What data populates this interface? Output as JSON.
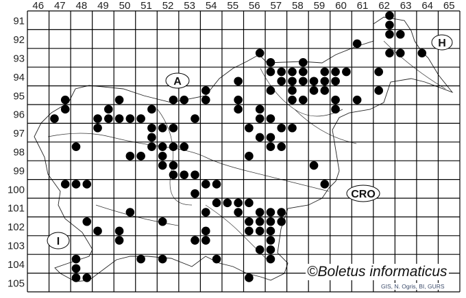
{
  "map": {
    "columns": [
      "46",
      "47",
      "48",
      "49",
      "50",
      "51",
      "52",
      "53",
      "54",
      "55",
      "56",
      "57",
      "58",
      "59",
      "60",
      "61",
      "62",
      "63",
      "64",
      "65"
    ],
    "rows": [
      "91",
      "92",
      "93",
      "94",
      "95",
      "96",
      "97",
      "98",
      "99",
      "100",
      "101",
      "102",
      "103",
      "104",
      "105"
    ],
    "country_labels": [
      {
        "text": "A"
      },
      {
        "text": "H"
      },
      {
        "text": "CRO"
      },
      {
        "text": "I"
      }
    ],
    "record_color": "#000000",
    "records": [
      [
        47.25,
        95.25
      ],
      [
        47.25,
        95.75
      ],
      [
        46.75,
        96.25
      ],
      [
        49.75,
        95.25
      ],
      [
        49.25,
        95.75
      ],
      [
        48.75,
        96.25
      ],
      [
        49.25,
        96.25
      ],
      [
        49.75,
        96.25
      ],
      [
        50.25,
        96.25
      ],
      [
        50.75,
        96.25
      ],
      [
        48.75,
        96.75
      ],
      [
        51.25,
        95.75
      ],
      [
        52.25,
        95.25
      ],
      [
        52.75,
        95.25
      ],
      [
        53.75,
        94.75
      ],
      [
        53.75,
        95.25
      ],
      [
        53.25,
        96.25
      ],
      [
        51.25,
        96.75
      ],
      [
        51.75,
        96.75
      ],
      [
        52.25,
        96.75
      ],
      [
        51.25,
        97.25
      ],
      [
        47.75,
        97.75
      ],
      [
        51.25,
        97.75
      ],
      [
        51.75,
        97.75
      ],
      [
        52.25,
        97.75
      ],
      [
        52.75,
        97.75
      ],
      [
        50.25,
        98.25
      ],
      [
        50.75,
        98.25
      ],
      [
        51.75,
        98.25
      ],
      [
        51.75,
        98.75
      ],
      [
        52.25,
        98.75
      ],
      [
        52.25,
        99.25
      ],
      [
        52.75,
        99.25
      ],
      [
        53.25,
        99.25
      ],
      [
        53.75,
        99.75
      ],
      [
        54.25,
        99.75
      ],
      [
        53.25,
        100.25
      ],
      [
        47.25,
        99.75
      ],
      [
        47.75,
        99.75
      ],
      [
        48.25,
        99.75
      ],
      [
        54.25,
        100.75
      ],
      [
        54.75,
        100.75
      ],
      [
        50.25,
        101.25
      ],
      [
        53.75,
        101.25
      ],
      [
        48.25,
        101.75
      ],
      [
        51.75,
        101.75
      ],
      [
        48.75,
        102.25
      ],
      [
        49.75,
        102.25
      ],
      [
        53.75,
        102.25
      ],
      [
        49.75,
        102.75
      ],
      [
        53.25,
        102.75
      ],
      [
        53.75,
        102.75
      ],
      [
        47.75,
        103.75
      ],
      [
        47.75,
        104.25
      ],
      [
        47.75,
        104.75
      ],
      [
        48.25,
        104.75
      ],
      [
        50.75,
        103.75
      ],
      [
        51.75,
        103.75
      ],
      [
        54.25,
        103.75
      ],
      [
        62.25,
        90.75
      ],
      [
        62.25,
        91.25
      ],
      [
        62.25,
        91.75
      ],
      [
        62.75,
        91.75
      ],
      [
        60.75,
        92.25
      ],
      [
        62.25,
        92.75
      ],
      [
        62.75,
        92.75
      ],
      [
        63.75,
        92.75
      ],
      [
        56.25,
        92.75
      ],
      [
        56.75,
        93.25
      ],
      [
        58.25,
        93.25
      ],
      [
        56.75,
        93.75
      ],
      [
        57.25,
        93.75
      ],
      [
        57.75,
        93.75
      ],
      [
        58.25,
        93.75
      ],
      [
        59.25,
        93.75
      ],
      [
        59.75,
        93.75
      ],
      [
        60.25,
        93.75
      ],
      [
        61.75,
        93.75
      ],
      [
        55.25,
        94.25
      ],
      [
        57.25,
        94.25
      ],
      [
        57.75,
        94.25
      ],
      [
        58.25,
        94.25
      ],
      [
        58.75,
        94.25
      ],
      [
        59.25,
        94.25
      ],
      [
        59.75,
        94.25
      ],
      [
        58.75,
        94.75
      ],
      [
        59.25,
        94.75
      ],
      [
        57.75,
        94.75
      ],
      [
        56.75,
        94.75
      ],
      [
        61.75,
        94.75
      ],
      [
        55.25,
        95.25
      ],
      [
        57.75,
        95.25
      ],
      [
        58.25,
        95.25
      ],
      [
        59.75,
        95.25
      ],
      [
        60.75,
        95.25
      ],
      [
        55.25,
        95.75
      ],
      [
        56.25,
        95.75
      ],
      [
        59.75,
        95.75
      ],
      [
        56.25,
        96.25
      ],
      [
        56.75,
        96.25
      ],
      [
        55.75,
        96.75
      ],
      [
        57.25,
        96.75
      ],
      [
        57.75,
        96.75
      ],
      [
        56.25,
        97.25
      ],
      [
        56.75,
        97.25
      ],
      [
        56.75,
        97.75
      ],
      [
        57.25,
        97.75
      ],
      [
        55.75,
        98.25
      ],
      [
        58.75,
        98.75
      ],
      [
        59.25,
        99.75
      ],
      [
        55.25,
        100.75
      ],
      [
        55.75,
        100.75
      ],
      [
        55.25,
        101.25
      ],
      [
        56.25,
        101.25
      ],
      [
        56.75,
        101.25
      ],
      [
        57.25,
        101.25
      ],
      [
        55.75,
        101.75
      ],
      [
        56.25,
        101.75
      ],
      [
        56.75,
        101.75
      ],
      [
        57.25,
        101.75
      ],
      [
        55.75,
        102.25
      ],
      [
        56.25,
        102.25
      ],
      [
        56.75,
        102.25
      ],
      [
        56.75,
        102.75
      ],
      [
        56.25,
        103.25
      ],
      [
        56.75,
        103.25
      ],
      [
        56.75,
        103.75
      ],
      [
        55.75,
        104.75
      ]
    ]
  },
  "copyright": "©Boletus informaticus",
  "credits": "GIS, N. Ogris, BI, GURS"
}
